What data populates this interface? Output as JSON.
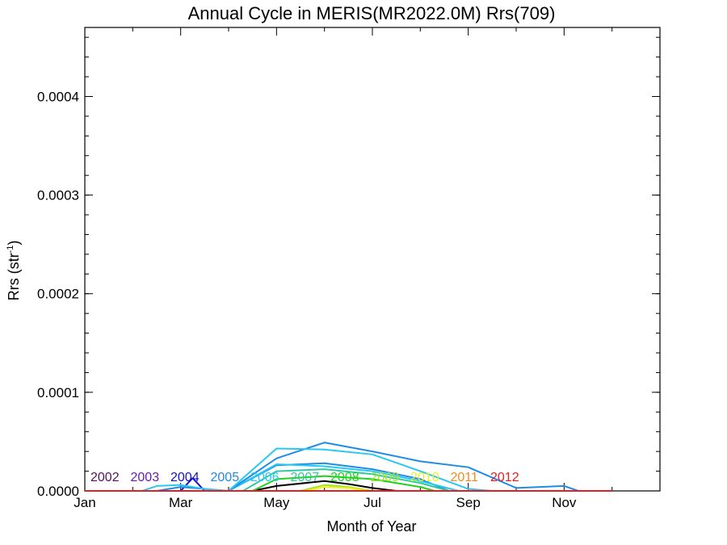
{
  "chart_data": {
    "type": "line",
    "title": "Annual Cycle in MERIS(MR2022.0M) Rrs(709)",
    "xlabel": "Month of Year",
    "ylabel": "Rrs (str",
    "ylabel_sup": "-1",
    "ylabel_suffix": ")",
    "xlim": [
      1,
      13
    ],
    "ylim": [
      0,
      0.00047
    ],
    "xticks": [
      {
        "x": 1,
        "label": "Jan"
      },
      {
        "x": 3,
        "label": "Mar"
      },
      {
        "x": 5,
        "label": "May"
      },
      {
        "x": 7,
        "label": "Jul"
      },
      {
        "x": 9,
        "label": "Sep"
      },
      {
        "x": 11,
        "label": "Nov"
      }
    ],
    "yticks": [
      {
        "y": 0.0,
        "label": "0.0000"
      },
      {
        "y": 0.0001,
        "label": "0.0001"
      },
      {
        "y": 0.0002,
        "label": "0.0002"
      },
      {
        "y": 0.0003,
        "label": "0.0003"
      },
      {
        "y": 0.0004,
        "label": "0.0004"
      }
    ],
    "series": [
      {
        "name": "2002",
        "color": "#5a0f5a",
        "x": [
          1,
          2,
          3,
          4,
          5,
          6,
          7,
          8,
          9,
          10,
          11,
          12
        ],
        "y": [
          0,
          0,
          0,
          0,
          0,
          0,
          0,
          0,
          0,
          0,
          0,
          0
        ]
      },
      {
        "name": "2003",
        "color": "#6a1ab4",
        "x": [
          1,
          2,
          3,
          4,
          5,
          6,
          7,
          8,
          9,
          10,
          11,
          12
        ],
        "y": [
          0,
          0,
          0,
          0,
          0,
          0,
          0,
          0,
          0,
          0,
          0,
          0
        ]
      },
      {
        "name": "2004",
        "color": "#1010c8",
        "x": [
          1,
          2,
          3,
          3.25,
          3.5,
          4,
          5,
          6,
          7,
          8,
          9,
          10,
          11,
          12
        ],
        "y": [
          0,
          0,
          0,
          1.3e-05,
          0,
          0,
          0,
          0,
          0,
          0,
          0,
          0,
          0,
          0
        ]
      },
      {
        "name": "2005",
        "color": "#1e8ce6",
        "x": [
          2.5,
          3,
          3.5,
          4,
          5,
          6,
          7,
          8,
          9,
          10,
          11,
          11.3
        ],
        "y": [
          0,
          4e-06,
          2e-06,
          0,
          3.3e-05,
          4.9e-05,
          4e-05,
          3e-05,
          2.4e-05,
          3e-06,
          5e-06,
          0
        ]
      },
      {
        "name": "2006",
        "color": "#28c8f0",
        "x": [
          2.2,
          2.5,
          3,
          3.5,
          4,
          5,
          6,
          7,
          8,
          9,
          9.5
        ],
        "y": [
          0,
          5e-06,
          6e-06,
          2e-06,
          0,
          4.3e-05,
          4.2e-05,
          3.7e-05,
          2e-05,
          2e-06,
          0
        ]
      },
      {
        "name": "2007",
        "color": "#32c8a0",
        "x": [
          4.3,
          5,
          6,
          7,
          8,
          8.6
        ],
        "y": [
          0,
          2e-05,
          2.2e-05,
          1.7e-05,
          8e-06,
          0
        ]
      },
      {
        "name": "2008",
        "color": "#1ed21e",
        "x": [
          4.5,
          5,
          6,
          7,
          8,
          8.3
        ],
        "y": [
          0,
          1.2e-05,
          1.5e-05,
          1.2e-05,
          4e-06,
          0
        ]
      },
      {
        "name": "2009",
        "color": "#a0e61e",
        "x": [
          5.5,
          6,
          6.5,
          7
        ],
        "y": [
          0,
          6e-06,
          4e-06,
          0
        ]
      },
      {
        "name": "2010",
        "color": "#f0f01e",
        "x": [
          5.6,
          6,
          6.5,
          6.9
        ],
        "y": [
          0,
          4e-06,
          3e-06,
          0
        ]
      },
      {
        "name": "2011",
        "color": "#f08c1e",
        "x": [
          1,
          12
        ],
        "y": [
          0,
          0
        ]
      },
      {
        "name": "2012",
        "color": "#e61e1e",
        "x": [
          1,
          12
        ],
        "y": [
          0,
          0
        ]
      }
    ],
    "extra_series": [
      {
        "color": "#000000",
        "x": [
          4.5,
          5,
          6,
          6.5,
          7,
          7.5,
          8
        ],
        "y": [
          0,
          5e-06,
          1e-05,
          7e-06,
          3e-06,
          0,
          0
        ]
      },
      {
        "color": "#1e8ce6",
        "x": [
          3,
          4,
          5,
          6,
          7,
          8,
          8.6
        ],
        "y": [
          0,
          0,
          2.6e-05,
          2.8e-05,
          2.2e-05,
          1.2e-05,
          0
        ]
      },
      {
        "color": "#28c8f0",
        "x": [
          4,
          5,
          6,
          7,
          8,
          8.8
        ],
        "y": [
          0,
          2.7e-05,
          2.5e-05,
          2e-05,
          1e-05,
          0
        ]
      }
    ],
    "grid": false,
    "legend": "bottom-inside"
  }
}
